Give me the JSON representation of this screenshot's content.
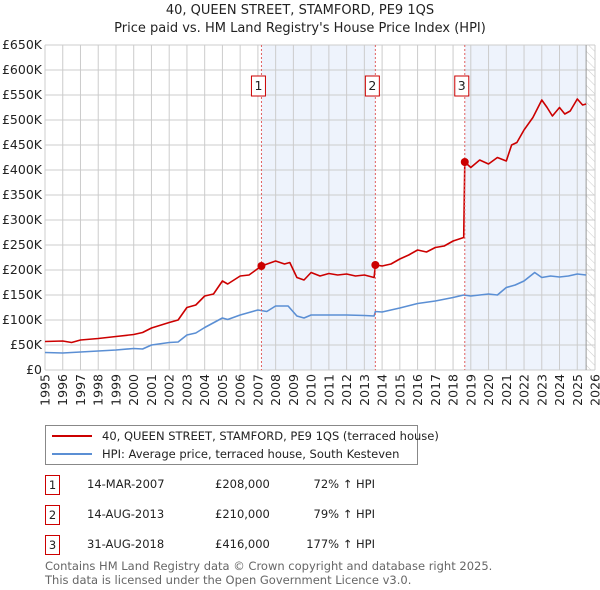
{
  "title": "40, QUEEN STREET, STAMFORD, PE9 1QS",
  "subtitle": "Price paid vs. HM Land Registry's House Price Index (HPI)",
  "colors": {
    "property": "#cc0000",
    "hpi": "#5b8fd4",
    "shade": "#eef3fc",
    "grid": "#cccccc"
  },
  "chart_data": {
    "type": "line",
    "title": "40, QUEEN STREET, STAMFORD, PE9 1QS — Price paid vs. HM Land Registry's House Price Index (HPI)",
    "xlim": [
      1995,
      2026
    ],
    "ylim": [
      0,
      650000
    ],
    "x_ticks": [
      "1995",
      "1996",
      "1997",
      "1998",
      "1999",
      "2000",
      "2001",
      "2002",
      "2003",
      "2004",
      "2005",
      "2006",
      "2007",
      "2008",
      "2009",
      "2010",
      "2011",
      "2012",
      "2013",
      "2014",
      "2015",
      "2016",
      "2017",
      "2018",
      "2019",
      "2020",
      "2021",
      "2022",
      "2023",
      "2024",
      "2025",
      "2026"
    ],
    "y_ticks": [
      {
        "v": 0,
        "label": "£0"
      },
      {
        "v": 50000,
        "label": "£50K"
      },
      {
        "v": 100000,
        "label": "£100K"
      },
      {
        "v": 150000,
        "label": "£150K"
      },
      {
        "v": 200000,
        "label": "£200K"
      },
      {
        "v": 250000,
        "label": "£250K"
      },
      {
        "v": 300000,
        "label": "£300K"
      },
      {
        "v": 350000,
        "label": "£350K"
      },
      {
        "v": 400000,
        "label": "£400K"
      },
      {
        "v": 450000,
        "label": "£450K"
      },
      {
        "v": 500000,
        "label": "£500K"
      },
      {
        "v": 550000,
        "label": "£550K"
      },
      {
        "v": 600000,
        "label": "£600K"
      },
      {
        "v": 650000,
        "label": "£650K"
      }
    ],
    "grid": true,
    "forecast_hatch_from": 2025.5,
    "series": [
      {
        "name": "40, QUEEN STREET, STAMFORD, PE9 1QS (terraced house)",
        "color": "#cc0000",
        "x": [
          1995,
          1996,
          1996.5,
          1997,
          1998,
          1999,
          2000,
          2000.5,
          2001,
          2002,
          2002.5,
          2003,
          2003.5,
          2004,
          2004.5,
          2005,
          2005.3,
          2006,
          2006.5,
          2007.2,
          2008,
          2008.5,
          2008.8,
          2009.2,
          2009.6,
          2010,
          2010.5,
          2011,
          2011.5,
          2012,
          2012.5,
          2013,
          2013.55,
          2013.62,
          2014,
          2014.5,
          2015,
          2015.5,
          2016,
          2016.5,
          2017,
          2017.5,
          2018,
          2018.6,
          2018.66,
          2019,
          2019.5,
          2020,
          2020.5,
          2021,
          2021.3,
          2021.6,
          2022,
          2022.5,
          2023,
          2023.3,
          2023.6,
          2024,
          2024.3,
          2024.6,
          2025,
          2025.3,
          2025.5
        ],
        "y": [
          57000,
          58000,
          55000,
          60000,
          63000,
          67000,
          71000,
          75000,
          84000,
          95000,
          100000,
          125000,
          130000,
          148000,
          152000,
          178000,
          172000,
          188000,
          190000,
          208000,
          218000,
          212000,
          215000,
          185000,
          180000,
          195000,
          188000,
          193000,
          190000,
          192000,
          188000,
          190000,
          185000,
          210000,
          208000,
          212000,
          222000,
          230000,
          240000,
          236000,
          245000,
          248000,
          258000,
          265000,
          416000,
          405000,
          420000,
          412000,
          425000,
          418000,
          450000,
          455000,
          480000,
          505000,
          540000,
          525000,
          508000,
          525000,
          512000,
          518000,
          542000,
          530000,
          532000
        ]
      },
      {
        "name": "HPI: Average price, terraced house, South Kesteven",
        "color": "#5b8fd4",
        "x": [
          1995,
          1996,
          1997,
          1998,
          1999,
          2000,
          2000.5,
          2001,
          2002,
          2002.5,
          2003,
          2003.5,
          2004,
          2005,
          2005.3,
          2006,
          2007,
          2007.5,
          2008,
          2008.7,
          2009.2,
          2009.6,
          2010,
          2011,
          2012,
          2013,
          2013.55,
          2013.62,
          2014,
          2015,
          2016,
          2017,
          2018,
          2018.6,
          2019,
          2020,
          2020.5,
          2021,
          2021.5,
          2022,
          2022.6,
          2023,
          2023.5,
          2024,
          2024.5,
          2025,
          2025.5
        ],
        "y": [
          35000,
          34000,
          36000,
          38000,
          40000,
          43000,
          42000,
          50000,
          55000,
          56000,
          70000,
          74000,
          85000,
          104000,
          101000,
          110000,
          120000,
          117000,
          128000,
          128000,
          108000,
          104000,
          110000,
          110000,
          110000,
          109000,
          108000,
          117000,
          116000,
          124000,
          133000,
          138000,
          145000,
          150000,
          148000,
          152000,
          150000,
          165000,
          170000,
          178000,
          195000,
          185000,
          188000,
          186000,
          188000,
          192000,
          190000
        ]
      }
    ],
    "sales": [
      {
        "id": "1",
        "x": 2007.2,
        "y": 208000
      },
      {
        "id": "2",
        "x": 2013.62,
        "y": 210000
      },
      {
        "id": "3",
        "x": 2018.66,
        "y": 416000
      }
    ]
  },
  "legend": [
    {
      "label": "40, QUEEN STREET, STAMFORD, PE9 1QS (terraced house)"
    },
    {
      "label": "HPI: Average price, terraced house, South Kesteven"
    }
  ],
  "transactions": [
    {
      "num": "1",
      "date": "14-MAR-2007",
      "price": "£208,000",
      "hpi": "72% ↑ HPI"
    },
    {
      "num": "2",
      "date": "14-AUG-2013",
      "price": "£210,000",
      "hpi": "79% ↑ HPI"
    },
    {
      "num": "3",
      "date": "31-AUG-2018",
      "price": "£416,000",
      "hpi": "177% ↑ HPI"
    }
  ],
  "footer": [
    "Contains HM Land Registry data © Crown copyright and database right 2025.",
    "This data is licensed under the Open Government Licence v3.0."
  ]
}
